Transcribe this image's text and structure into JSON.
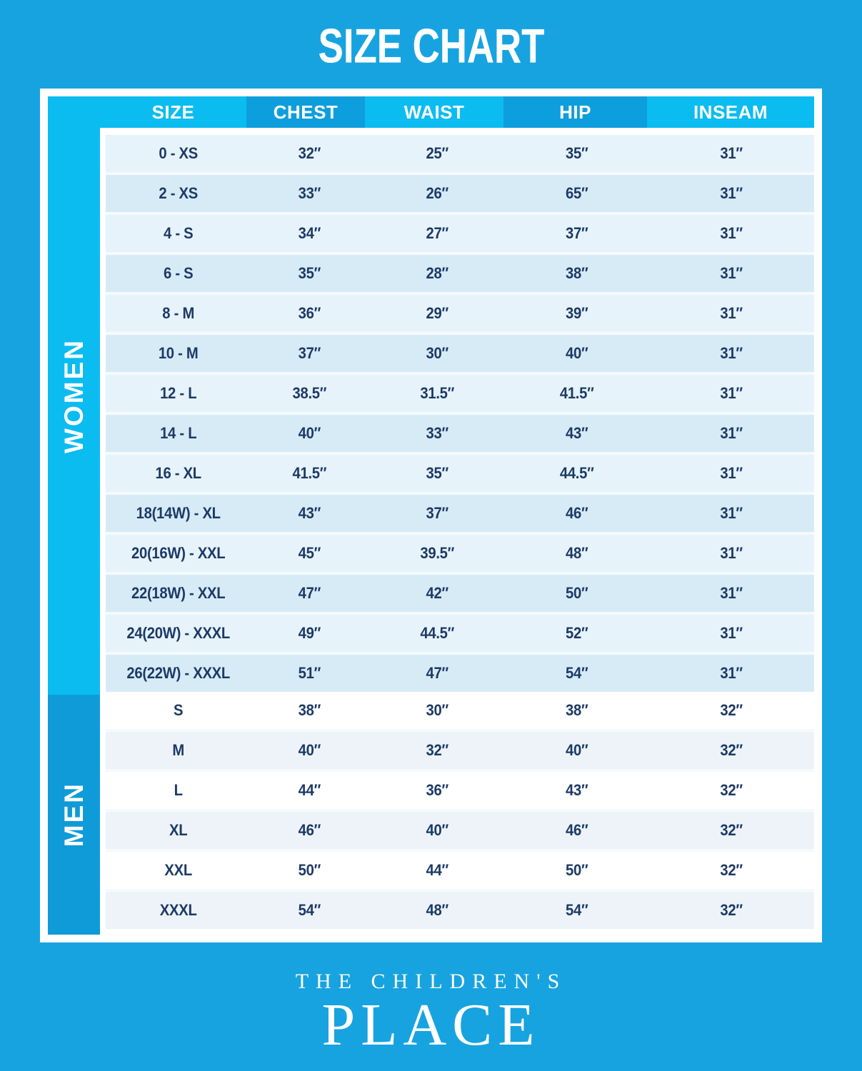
{
  "title": "SIZE CHART",
  "chart_data": {
    "type": "table",
    "title": "SIZE CHART",
    "headers": [
      "SIZE",
      "CHEST",
      "WAIST",
      "HIP",
      "INSEAM"
    ],
    "sections": [
      {
        "label": "WOMEN",
        "rows": [
          [
            "0 - XS",
            "32″",
            "25″",
            "35″",
            "31″"
          ],
          [
            "2 - XS",
            "33″",
            "26″",
            "65″",
            "31″"
          ],
          [
            "4 - S",
            "34″",
            "27″",
            "37″",
            "31″"
          ],
          [
            "6 - S",
            "35″",
            "28″",
            "38″",
            "31″"
          ],
          [
            "8 - M",
            "36″",
            "29″",
            "39″",
            "31″"
          ],
          [
            "10 - M",
            "37″",
            "30″",
            "40″",
            "31″"
          ],
          [
            "12 - L",
            "38.5″",
            "31.5″",
            "41.5″",
            "31″"
          ],
          [
            "14 - L",
            "40″",
            "33″",
            "43″",
            "31″"
          ],
          [
            "16 - XL",
            "41.5″",
            "35″",
            "44.5″",
            "31″"
          ],
          [
            "18(14W) - XL",
            "43″",
            "37″",
            "46″",
            "31″"
          ],
          [
            "20(16W) - XXL",
            "45″",
            "39.5″",
            "48″",
            "31″"
          ],
          [
            "22(18W) - XXL",
            "47″",
            "42″",
            "50″",
            "31″"
          ],
          [
            "24(20W) - XXXL",
            "49″",
            "44.5″",
            "52″",
            "31″"
          ],
          [
            "26(22W) - XXXL",
            "51″",
            "47″",
            "54″",
            "31″"
          ]
        ]
      },
      {
        "label": "MEN",
        "rows": [
          [
            "S",
            "38″",
            "30″",
            "38″",
            "32″"
          ],
          [
            "M",
            "40″",
            "32″",
            "40″",
            "32″"
          ],
          [
            "L",
            "44″",
            "36″",
            "43″",
            "32″"
          ],
          [
            "XL",
            "46″",
            "40″",
            "46″",
            "32″"
          ],
          [
            "XXL",
            "50″",
            "44″",
            "50″",
            "32″"
          ],
          [
            "XXXL",
            "54″",
            "48″",
            "54″",
            "32″"
          ]
        ]
      }
    ]
  },
  "footer": {
    "brand_line1": "THE CHILDREN'S",
    "brand_line2": "PLACE"
  },
  "colors": {
    "bg": "#17a3e0",
    "sidebarWomen": "#0bbcf1",
    "sidebarMen": "#0e9bd8",
    "headerLight": "#0bbcf1",
    "headerDark": "#0d9edd",
    "womenRowLight": "#e7f3fb",
    "womenRowDark": "#d7ebf7",
    "menRowLight": "#edf3f8",
    "textNavy": "#1d3a66",
    "separator": "#f6fafd",
    "white": "#ffffff"
  }
}
